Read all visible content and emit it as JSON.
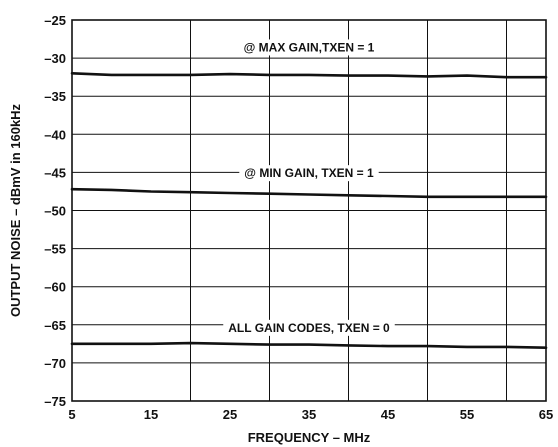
{
  "chart_data": {
    "type": "line",
    "title": "",
    "xlabel": "FREQUENCY – MHz",
    "ylabel": "OUTPUT NOISE – dBmV in 160kHz",
    "xlim": [
      5,
      65
    ],
    "ylim": [
      -75,
      -25
    ],
    "x_ticks": [
      5,
      15,
      25,
      35,
      45,
      55,
      65
    ],
    "y_ticks": [
      -25,
      -30,
      -35,
      -40,
      -45,
      -50,
      -55,
      -60,
      -65,
      -70,
      -75
    ],
    "x_tick_labels": [
      "5",
      "15",
      "25",
      "35",
      "45",
      "55",
      "65"
    ],
    "y_tick_labels": [
      "–25",
      "–30",
      "–35",
      "–40",
      "–45",
      "–50",
      "–55",
      "–60",
      "–65",
      "–70",
      "–75"
    ],
    "x_minor_gridlines": [
      20,
      30,
      40,
      50,
      60
    ],
    "grid": true,
    "legend": "none",
    "line_color": "#111111",
    "series": [
      {
        "x": [
          5,
          10,
          15,
          20,
          25,
          30,
          35,
          40,
          45,
          50,
          55,
          60,
          65
        ],
        "values": [
          -32.0,
          -32.2,
          -32.2,
          -32.2,
          -32.1,
          -32.2,
          -32.2,
          -32.3,
          -32.3,
          -32.4,
          -32.3,
          -32.5,
          -32.5
        ]
      },
      {
        "x": [
          5,
          10,
          15,
          20,
          25,
          30,
          35,
          40,
          45,
          50,
          55,
          60,
          65
        ],
        "values": [
          -47.2,
          -47.3,
          -47.5,
          -47.6,
          -47.7,
          -47.8,
          -47.9,
          -48.0,
          -48.1,
          -48.2,
          -48.2,
          -48.2,
          -48.2
        ]
      },
      {
        "x": [
          5,
          10,
          15,
          20,
          25,
          30,
          35,
          40,
          45,
          50,
          55,
          60,
          65
        ],
        "values": [
          -67.5,
          -67.5,
          -67.5,
          -67.4,
          -67.5,
          -67.6,
          -67.6,
          -67.7,
          -67.8,
          -67.8,
          -67.9,
          -67.9,
          -68.0
        ]
      }
    ],
    "annotations": [
      {
        "text": "@ MAX GAIN,TXEN = 1",
        "x": 35,
        "y": -28.6
      },
      {
        "text": "@ MIN GAIN, TXEN = 1",
        "x": 35,
        "y": -45.1
      },
      {
        "text": "ALL GAIN CODES, TXEN = 0",
        "x": 35,
        "y": -65.4
      }
    ]
  }
}
